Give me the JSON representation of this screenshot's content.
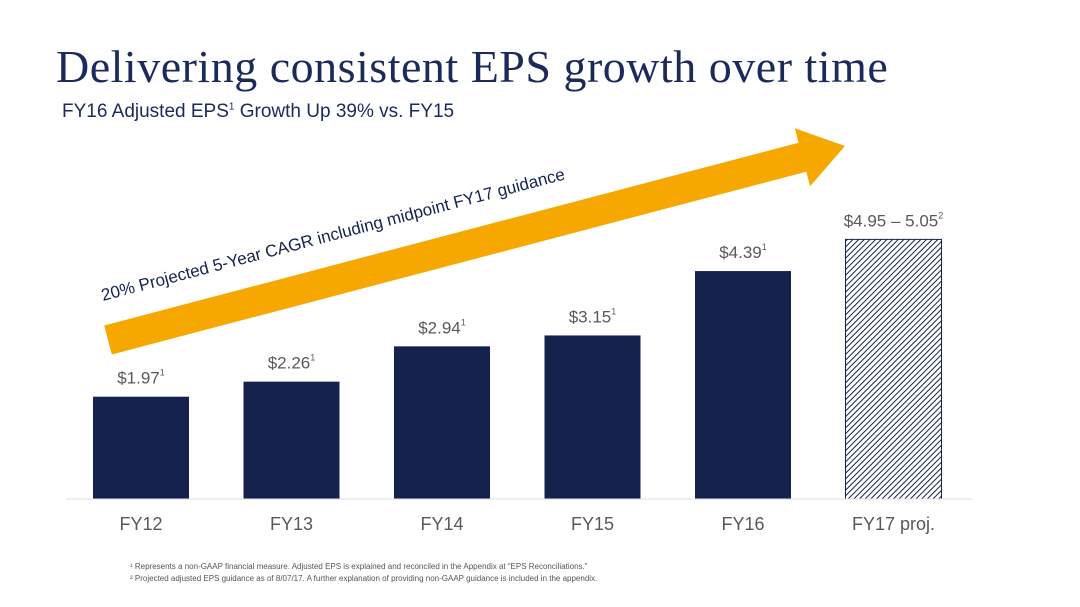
{
  "title": "Delivering consistent EPS growth over time",
  "subtitle": {
    "text_before": "FY16 Adjusted EPS",
    "sup": "1",
    "text_after": " Growth Up 39% vs. FY15"
  },
  "arrow_label": "20% Projected 5-Year CAGR including midpoint FY17 guidance",
  "colors": {
    "bar": "#14224d",
    "arrow": "#f6a800",
    "title": "#1b2a5b",
    "label": "#595959"
  },
  "chart_data": {
    "type": "bar",
    "categories": [
      "FY12",
      "FY13",
      "FY14",
      "FY15",
      "FY16",
      "FY17 proj."
    ],
    "values": [
      1.97,
      2.26,
      2.94,
      3.15,
      4.39,
      5.0
    ],
    "range": [
      null,
      null,
      null,
      null,
      null,
      [
        4.95,
        5.05
      ]
    ],
    "data_labels": [
      "$1.97",
      "$2.26",
      "$2.94",
      "$3.15",
      "$4.39",
      "$4.95 – 5.05"
    ],
    "label_sups": [
      "1",
      "1",
      "1",
      "1",
      "1",
      "2"
    ],
    "projected": [
      false,
      false,
      false,
      false,
      false,
      true
    ],
    "ylim": [
      0,
      5.2
    ],
    "grid": false,
    "title": "",
    "xlabel": "",
    "ylabel": ""
  },
  "footnotes": [
    "¹ Represents a non-GAAP financial measure. Adjusted EPS is explained and reconciled in the Appendix at “EPS Reconciliations.”",
    "² Projected adjusted EPS guidance as of 8/07/17. A further explanation of providing non-GAAP guidance is included in the appendix."
  ]
}
